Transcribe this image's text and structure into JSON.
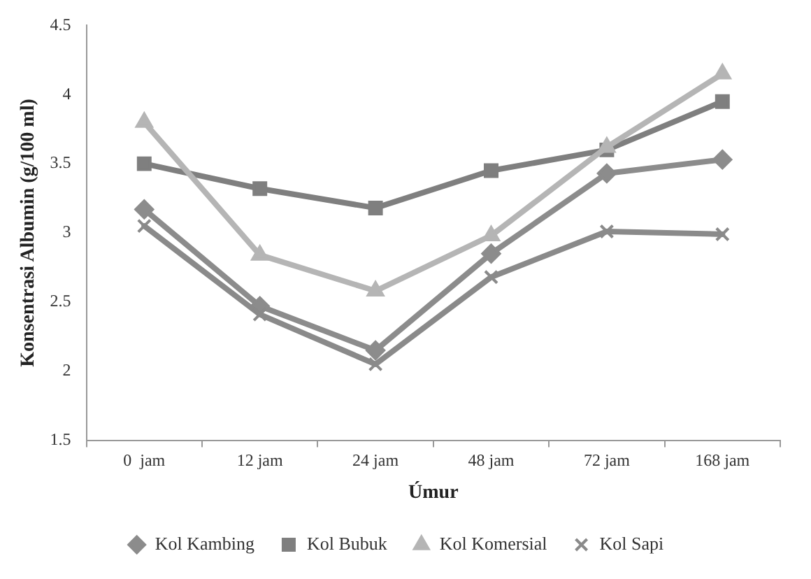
{
  "chart_data": {
    "type": "line",
    "xlabel": "Úmur",
    "ylabel": "Konsentrasi Albumin (g/100 ml)",
    "categories": [
      "0  jam",
      "12 jam",
      "24 jam",
      "48 jam",
      "72 jam",
      "168 jam"
    ],
    "series": [
      {
        "name": "Kol Kambing",
        "color": "#8c8c8c",
        "marker": "diamond",
        "values": [
          3.17,
          2.47,
          2.15,
          2.85,
          3.43,
          3.53
        ]
      },
      {
        "name": "Kol Bubuk",
        "color": "#7f7f7f",
        "marker": "square",
        "values": [
          3.5,
          3.32,
          3.18,
          3.45,
          3.6,
          3.95
        ]
      },
      {
        "name": "Kol Komersial",
        "color": "#b5b5b5",
        "marker": "triangle",
        "values": [
          3.8,
          2.84,
          2.58,
          2.98,
          3.62,
          4.15
        ]
      },
      {
        "name": "Kol Sapi",
        "color": "#8a8a8a",
        "marker": "cross",
        "values": [
          3.05,
          2.41,
          2.05,
          2.68,
          3.01,
          2.99
        ]
      }
    ],
    "ylim": [
      1.5,
      4.5
    ],
    "yticks": [
      1.5,
      2,
      2.5,
      3,
      3.5,
      4,
      4.5
    ],
    "grid": false,
    "legend": "bottom",
    "line_style": "solid"
  }
}
